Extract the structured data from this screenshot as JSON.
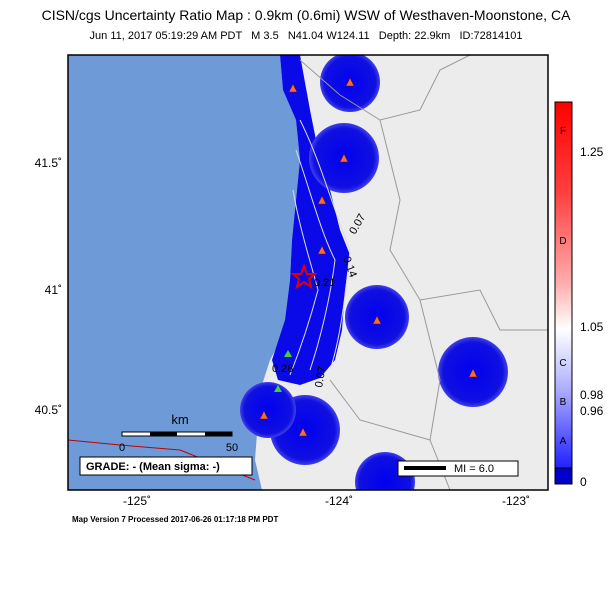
{
  "header": {
    "title": "CISN/cgs Uncertainty Ratio Map : 0.9km (0.6mi) WSW of Westhaven-Moonstone, CA",
    "subtitle": "Jun 11, 2017 05:19:29 AM PDT   M 3.5   N41.04 W124.11   Depth: 22.9km   ID:72814101"
  },
  "axes": {
    "lat_labels": [
      "41.5˚",
      "41˚",
      "40.5˚"
    ],
    "lon_labels": [
      "-125˚",
      "-124˚",
      "-123˚"
    ]
  },
  "colorbar": {
    "values": [
      "1.25",
      "1.05",
      "0.98",
      "0.96",
      "0"
    ],
    "grades": [
      "F",
      "D",
      "C",
      "B",
      "A"
    ]
  },
  "contours": [
    "0.07",
    "0.14",
    "0.21",
    "0.28",
    "0.07"
  ],
  "scale": {
    "unit": "km",
    "start": "0",
    "end": "50"
  },
  "legend": {
    "grade": "GRADE: - (Mean sigma: -)",
    "mi": "MI = 6.0"
  },
  "footer": "Map Version 7 Processed 2017-06-26 01:17:18 PM PDT"
}
